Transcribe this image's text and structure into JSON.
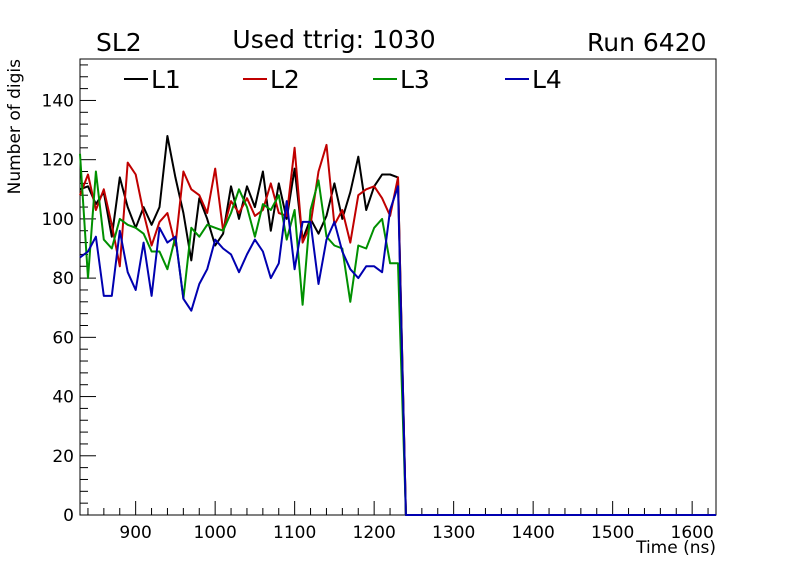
{
  "header": {
    "left": "SL2",
    "center": "Used ttrig: 1030",
    "right": "Run 6420"
  },
  "chart_data": {
    "type": "line",
    "title": "Used ttrig: 1030",
    "xlabel": "Time (ns)",
    "ylabel": "Number of digis",
    "xlim": [
      830,
      1630
    ],
    "ylim": [
      0,
      154
    ],
    "xticks": [
      900,
      1000,
      1100,
      1200,
      1300,
      1400,
      1500,
      1600
    ],
    "yticks": [
      0,
      20,
      40,
      60,
      80,
      100,
      120,
      140
    ],
    "grid": false,
    "legend_position": "top",
    "x": [
      830,
      840,
      850,
      860,
      870,
      880,
      890,
      900,
      910,
      920,
      930,
      940,
      950,
      960,
      970,
      980,
      990,
      1000,
      1010,
      1020,
      1030,
      1040,
      1050,
      1060,
      1070,
      1080,
      1090,
      1100,
      1110,
      1120,
      1130,
      1140,
      1150,
      1160,
      1170,
      1180,
      1190,
      1200,
      1210,
      1220,
      1230,
      1240,
      1250,
      1260,
      1270,
      1280,
      1290,
      1300,
      1310,
      1320,
      1330,
      1340,
      1350,
      1360,
      1370,
      1380,
      1390,
      1400,
      1410,
      1420,
      1430,
      1440,
      1450,
      1460,
      1470,
      1480,
      1490,
      1500,
      1510,
      1520,
      1530,
      1540,
      1550,
      1560,
      1570,
      1580,
      1590,
      1600,
      1610,
      1620,
      1630
    ],
    "series": [
      {
        "name": "L1",
        "color": "#000000",
        "values": [
          110,
          111,
          105,
          109,
          94,
          114,
          104,
          97,
          104,
          98,
          104,
          128,
          114,
          102,
          86,
          107,
          100,
          91,
          95,
          111,
          100,
          111,
          104,
          116,
          96,
          112,
          100,
          117,
          93,
          100,
          95,
          101,
          112,
          100,
          109,
          121,
          103,
          111,
          115,
          115,
          114,
          0,
          0,
          0,
          0,
          0,
          0,
          0,
          0,
          0,
          0,
          0,
          0,
          0,
          0,
          0,
          0,
          0,
          0,
          0,
          0,
          0,
          0,
          0,
          0,
          0,
          0,
          0,
          0,
          0,
          0,
          0,
          0,
          0,
          0,
          0,
          0,
          0,
          0,
          0,
          0
        ]
      },
      {
        "name": "L2",
        "color": "#c00000",
        "values": [
          108,
          115,
          103,
          110,
          98,
          84,
          119,
          115,
          102,
          91,
          99,
          102,
          91,
          116,
          110,
          108,
          102,
          117,
          96,
          106,
          102,
          107,
          101,
          103,
          112,
          102,
          101,
          124,
          92,
          98,
          116,
          125,
          98,
          103,
          92,
          108,
          110,
          111,
          107,
          101,
          114,
          0,
          0,
          0,
          0,
          0,
          0,
          0,
          0,
          0,
          0,
          0,
          0,
          0,
          0,
          0,
          0,
          0,
          0,
          0,
          0,
          0,
          0,
          0,
          0,
          0,
          0,
          0,
          0,
          0,
          0,
          0,
          0,
          0,
          0,
          0,
          0,
          0,
          0,
          0,
          0
        ]
      },
      {
        "name": "L3",
        "color": "#009000",
        "values": [
          122,
          80,
          116,
          93,
          90,
          100,
          98,
          97,
          95,
          89,
          89,
          83,
          94,
          73,
          97,
          94,
          98,
          97,
          96,
          102,
          110,
          104,
          94,
          105,
          103,
          108,
          93,
          103,
          71,
          103,
          113,
          94,
          91,
          90,
          72,
          91,
          90,
          97,
          100,
          85,
          85,
          0,
          0,
          0,
          0,
          0,
          0,
          0,
          0,
          0,
          0,
          0,
          0,
          0,
          0,
          0,
          0,
          0,
          0,
          0,
          0,
          0,
          0,
          0,
          0,
          0,
          0,
          0,
          0,
          0,
          0,
          0,
          0,
          0,
          0,
          0,
          0,
          0,
          0,
          0,
          0
        ]
      },
      {
        "name": "L4",
        "color": "#0000b0",
        "values": [
          87,
          89,
          94,
          74,
          74,
          96,
          82,
          76,
          92,
          74,
          97,
          92,
          94,
          73,
          69,
          78,
          83,
          93,
          90,
          88,
          82,
          88,
          93,
          89,
          80,
          85,
          106,
          83,
          99,
          99,
          78,
          93,
          99,
          89,
          83,
          80,
          84,
          84,
          82,
          103,
          111,
          0,
          0,
          0,
          0,
          0,
          0,
          0,
          0,
          0,
          0,
          0,
          0,
          0,
          0,
          0,
          0,
          0,
          0,
          0,
          0,
          0,
          0,
          0,
          0,
          0,
          0,
          0,
          0,
          0,
          0,
          0,
          0,
          0,
          0,
          0,
          0,
          0,
          0,
          0,
          0
        ]
      }
    ]
  }
}
